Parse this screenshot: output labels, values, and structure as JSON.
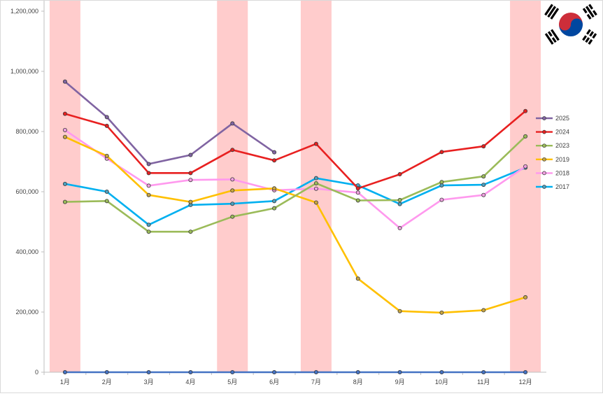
{
  "chart_data": {
    "type": "line",
    "title": "",
    "xlabel": "",
    "ylabel": "",
    "categories": [
      "1月",
      "2月",
      "3月",
      "4月",
      "5月",
      "6月",
      "7月",
      "8月",
      "9月",
      "10月",
      "11月",
      "12月"
    ],
    "ylim": [
      0,
      1200000
    ],
    "yticks": [
      0,
      200000,
      400000,
      600000,
      800000,
      1000000,
      1200000
    ],
    "ytick_labels": [
      "0",
      "200,000",
      "400,000",
      "600,000",
      "800,000",
      "1,000,000",
      "1,200,000"
    ],
    "grid": false,
    "legend_position": "right",
    "highlighted_months": [
      "1月",
      "5月",
      "7月",
      "12月"
    ],
    "highlight_color": "#ffcccc",
    "series": [
      {
        "name": "2025",
        "color": "#8064a2",
        "marker_fill": "#8064a2",
        "values": [
          966000,
          848000,
          692000,
          722000,
          827000,
          731000,
          null,
          null,
          null,
          null,
          null,
          null
        ]
      },
      {
        "name": "2024",
        "color": "#e82020",
        "marker_fill": "#e82020",
        "values": [
          859000,
          819000,
          662000,
          662000,
          739000,
          704000,
          759000,
          611000,
          658000,
          732000,
          751000,
          868000
        ]
      },
      {
        "name": "2023",
        "color": "#9bbb59",
        "marker_fill": "#9bbb59",
        "values": [
          566000,
          569000,
          467000,
          467000,
          517000,
          545000,
          628000,
          571000,
          572000,
          632000,
          651000,
          784000
        ]
      },
      {
        "name": "2019",
        "color": "#ffc000",
        "marker_fill": "#c9a640",
        "values": [
          782000,
          719000,
          589000,
          566000,
          604000,
          611000,
          564000,
          311000,
          203000,
          198000,
          206000,
          249000
        ]
      },
      {
        "name": "2018",
        "color": "#ff99ee",
        "marker_fill": "#f0a0e0",
        "values": [
          805000,
          710000,
          620000,
          639000,
          641000,
          605000,
          610000,
          597000,
          479000,
          573000,
          589000,
          684000
        ]
      },
      {
        "name": "2017",
        "color": "#00b0f0",
        "marker_fill": "#4aa0c0",
        "values": [
          626000,
          600000,
          490000,
          556000,
          560000,
          569000,
          645000,
          621000,
          559000,
          621000,
          623000,
          680000
        ]
      },
      {
        "name": "",
        "color": "#4472c4",
        "marker_fill": "#4472c4",
        "values": [
          0,
          0,
          0,
          0,
          0,
          0,
          0,
          0,
          0,
          0,
          0,
          0
        ]
      }
    ]
  },
  "flag": {
    "icon": "korea-flag-icon",
    "red": "#cd2e3a",
    "blue": "#0047a0",
    "black": "#000000"
  }
}
